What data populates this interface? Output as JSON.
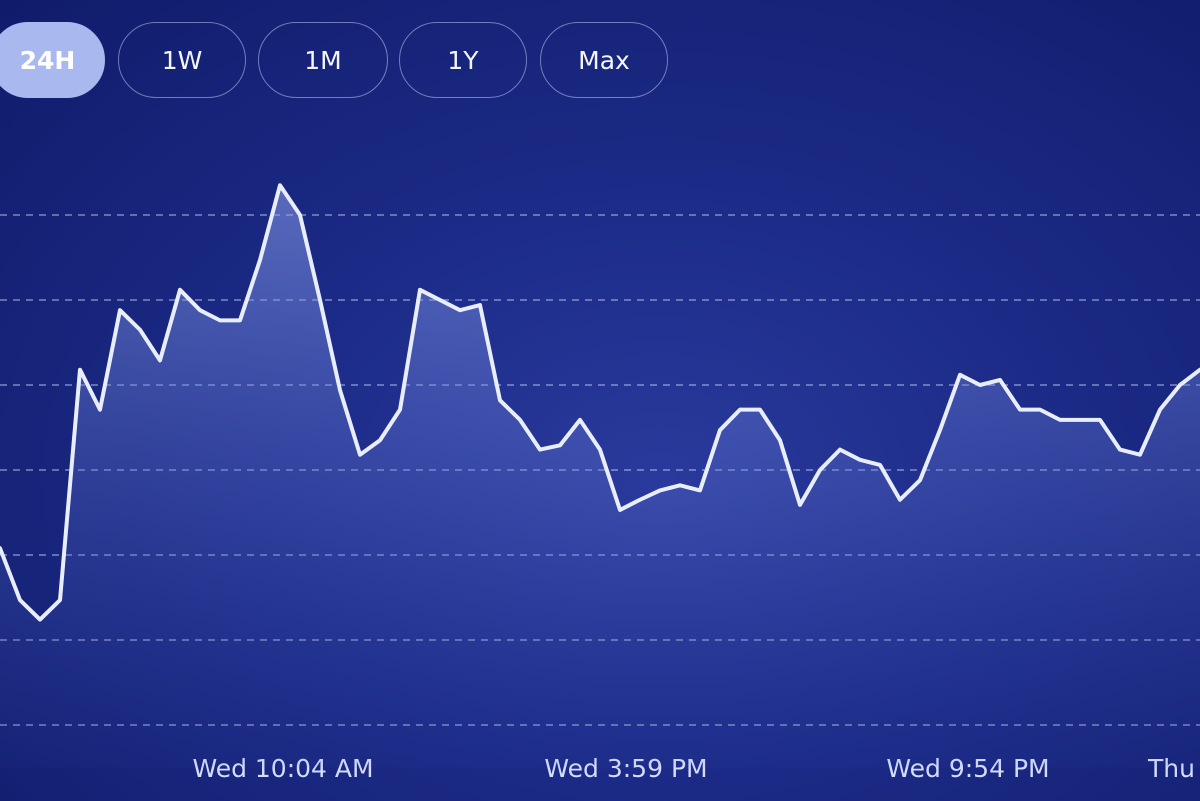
{
  "buttons": [
    "24H",
    "1W",
    "1M",
    "1Y",
    "Max"
  ],
  "chart_data": {
    "type": "line",
    "values": [
      2.08,
      1.47,
      1.24,
      1.47,
      4.18,
      3.71,
      4.88,
      4.65,
      4.29,
      5.12,
      4.88,
      4.76,
      4.76,
      5.47,
      6.35,
      6.0,
      5.0,
      3.94,
      3.18,
      3.35,
      3.71,
      5.12,
      5.0,
      4.88,
      4.94,
      3.82,
      3.59,
      3.24,
      3.29,
      3.59,
      3.24,
      2.53,
      2.65,
      2.76,
      2.82,
      2.76,
      3.47,
      3.71,
      3.71,
      3.35,
      2.59,
      3.0,
      3.24,
      3.12,
      3.06,
      2.65,
      2.88,
      3.47,
      4.12,
      4.0,
      4.06,
      3.71,
      3.71,
      3.59,
      3.59,
      3.59,
      3.24,
      3.18,
      3.71,
      4.0,
      4.18
    ],
    "color": "#e8eeff",
    "xlim": [
      0,
      60
    ],
    "xticks": [
      {
        "value": 14.15,
        "label": "Wed 10:04 AM"
      },
      {
        "value": 31.3,
        "label": "Wed 3:59 PM"
      },
      {
        "value": 48.4,
        "label": "Wed 9:54 PM"
      },
      {
        "value": 58.75,
        "label": "Thu"
      }
    ],
    "ylim": [
      -0.5,
      7
    ],
    "yticks": [
      0,
      1,
      2,
      3,
      4,
      5,
      6
    ],
    "grid": true
  }
}
